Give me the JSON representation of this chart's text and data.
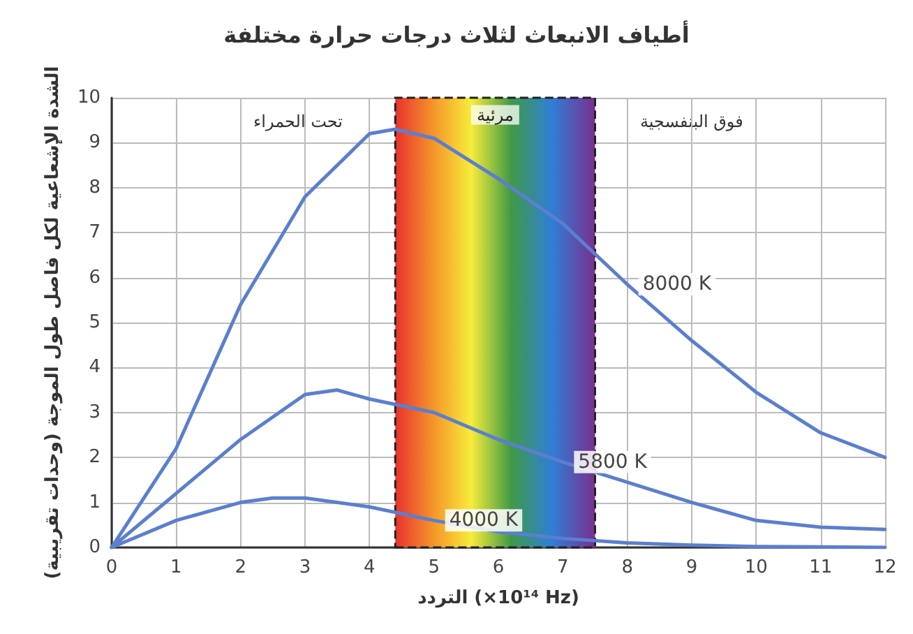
{
  "chart_data": {
    "type": "line",
    "title": "أطياف الانبعاث لثلاث درجات حرارة مختلفة",
    "xlabel": "التردد (×10¹⁴ Hz)",
    "ylabel": "الشدة الإشعاعية لكل فاصل طول الموجة (وحدات تقريبية)",
    "series": [
      {
        "name": "8000 K",
        "color": "#5b7fcf",
        "x": [
          0,
          1,
          2,
          3,
          4,
          4.4,
          5,
          6,
          7,
          8,
          9,
          10,
          11,
          12
        ],
        "values": [
          0,
          2.2,
          5.4,
          7.8,
          9.2,
          9.3,
          9.1,
          8.2,
          7.2,
          5.85,
          4.6,
          3.45,
          2.55,
          2.0
        ]
      },
      {
        "name": "5800 K",
        "color": "#5b7fcf",
        "x": [
          0,
          1,
          2,
          3,
          3.5,
          4,
          5,
          6,
          7,
          8,
          9,
          10,
          11,
          12
        ],
        "values": [
          0,
          1.2,
          2.4,
          3.4,
          3.5,
          3.3,
          3.0,
          2.4,
          1.9,
          1.45,
          1.0,
          0.6,
          0.45,
          0.4
        ]
      },
      {
        "name": "4000 K",
        "color": "#5b7fcf",
        "x": [
          0,
          1,
          2,
          2.5,
          3,
          4,
          5,
          6,
          7,
          8,
          9,
          10,
          11,
          12
        ],
        "values": [
          0,
          0.6,
          1.0,
          1.1,
          1.1,
          0.9,
          0.6,
          0.35,
          0.2,
          0.1,
          0.05,
          0.02,
          0.01,
          0
        ]
      }
    ],
    "bands": [
      {
        "axis": "x",
        "from": 4.4,
        "to": 7.5,
        "label": "مرئية"
      }
    ],
    "annotations": [
      "تحت الحمراء",
      "فوق البنفسجية"
    ],
    "xlim": [
      0,
      12
    ],
    "xticks": [
      0,
      1,
      2,
      3,
      4,
      5,
      6,
      7,
      8,
      9,
      10,
      11,
      12
    ],
    "ylim": [
      0,
      10
    ],
    "yticks": [
      0,
      1,
      2,
      3,
      4,
      5,
      6,
      7,
      8,
      9,
      10
    ],
    "grid": true,
    "legend": false,
    "marker": "none",
    "line_style": "solid"
  }
}
